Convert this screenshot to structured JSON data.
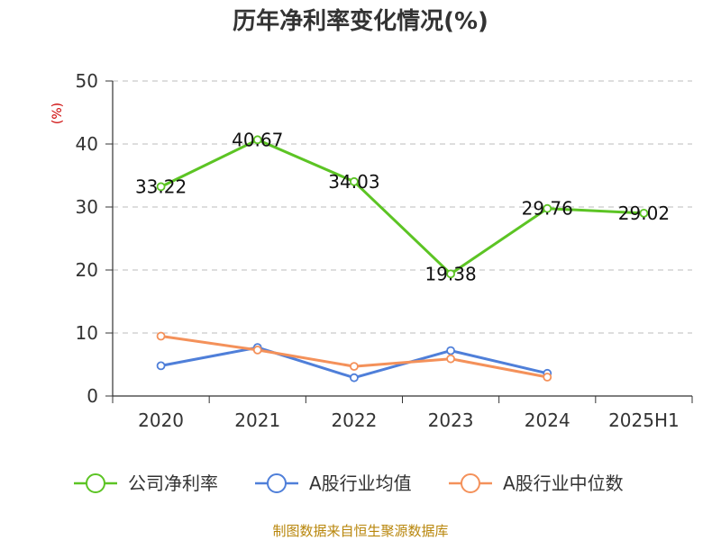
{
  "chart_data": {
    "type": "line",
    "title": "历年净利率变化情况(%)",
    "ylabel": "(%)",
    "xlabel": "",
    "categories": [
      "2020",
      "2021",
      "2022",
      "2023",
      "2024",
      "2025H1"
    ],
    "yticks": [
      "0",
      "10",
      "20",
      "30",
      "40",
      "50"
    ],
    "ylim": [
      0,
      50
    ],
    "grid": true,
    "legend_position": "bottom",
    "series": [
      {
        "name": "公司净利率",
        "color": "#5cc424",
        "values": [
          33.22,
          40.67,
          34.03,
          19.38,
          29.76,
          29.02
        ],
        "labels": [
          "33.22",
          "40.67",
          "34.03",
          "19.38",
          "29.76",
          "29.02"
        ]
      },
      {
        "name": "A股行业均值",
        "color": "#4f7fd9",
        "values": [
          4.8,
          7.7,
          2.9,
          7.2,
          3.6,
          null
        ],
        "labels": []
      },
      {
        "name": "A股行业中位数",
        "color": "#f4915a",
        "values": [
          9.5,
          7.3,
          4.7,
          5.9,
          3.0,
          null
        ],
        "labels": []
      }
    ]
  },
  "source": "制图数据来自恒生聚源数据库"
}
